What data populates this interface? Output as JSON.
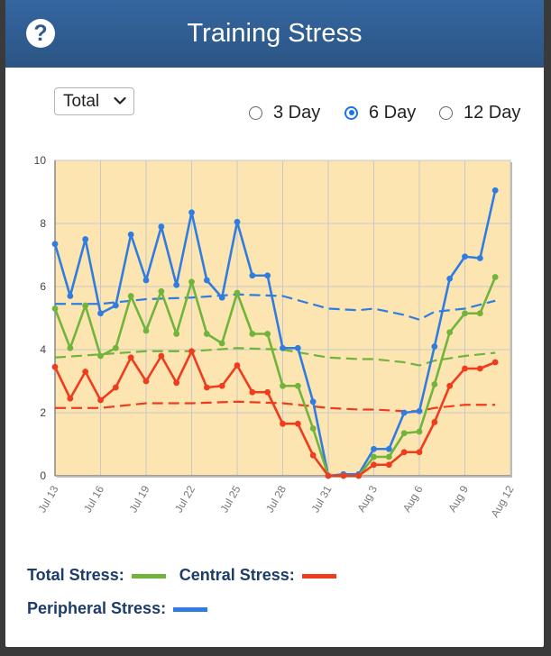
{
  "header": {
    "title": "Training Stress",
    "help_icon": "question-circle-icon"
  },
  "controls": {
    "select_value": "Total",
    "radios": [
      {
        "label": "3 Day",
        "checked": false
      },
      {
        "label": "6 Day",
        "checked": true
      },
      {
        "label": "12 Day",
        "checked": false
      }
    ]
  },
  "legend": {
    "total_label": "Total Stress:",
    "central_label": "Central Stress:",
    "peripheral_label": "Peripheral Stress:"
  },
  "chart_data": {
    "type": "line",
    "ylim": [
      0,
      10
    ],
    "yticks": [
      "0",
      "2",
      "4",
      "6",
      "8",
      "10"
    ],
    "xticks": [
      "Jul 13",
      "Jul 16",
      "Jul 19",
      "Jul 22",
      "Jul 25",
      "Jul 28",
      "Jul 31",
      "Aug 3",
      "Aug 6",
      "Aug 9",
      "Aug 12"
    ],
    "grid": true,
    "plot_background": "#fce5b0",
    "series": [
      {
        "key": "peripheral",
        "color": "#2f7de1",
        "style": "solid-markers",
        "x": [
          0,
          1,
          2,
          3,
          4,
          5,
          6,
          7,
          8,
          9,
          10,
          11,
          12,
          13,
          14,
          15,
          16,
          17,
          18,
          19,
          20,
          21,
          22,
          23,
          24,
          25,
          26,
          27,
          28,
          29
        ],
        "values": [
          7.35,
          5.7,
          7.5,
          5.15,
          5.4,
          7.65,
          6.2,
          7.9,
          6.05,
          8.35,
          6.2,
          5.65,
          8.05,
          6.35,
          6.35,
          4.05,
          4.05,
          2.35,
          0.0,
          0.05,
          0.05,
          0.85,
          0.85,
          2.0,
          2.05,
          4.1,
          6.25,
          6.95,
          6.9,
          9.05
        ]
      },
      {
        "key": "total",
        "color": "#70b43c",
        "style": "solid-markers",
        "x": [
          0,
          1,
          2,
          3,
          4,
          5,
          6,
          7,
          8,
          9,
          10,
          11,
          12,
          13,
          14,
          15,
          16,
          17,
          18,
          19,
          20,
          21,
          22,
          23,
          24,
          25,
          26,
          27,
          28,
          29
        ],
        "values": [
          5.3,
          4.05,
          5.4,
          3.8,
          4.05,
          5.7,
          4.6,
          5.85,
          4.5,
          6.15,
          4.5,
          4.2,
          5.8,
          4.5,
          4.5,
          2.85,
          2.85,
          1.5,
          0.0,
          0.0,
          0.0,
          0.6,
          0.6,
          1.35,
          1.4,
          2.9,
          4.55,
          5.15,
          5.15,
          6.3
        ]
      },
      {
        "key": "central",
        "color": "#f03c1e",
        "style": "solid-markers",
        "x": [
          0,
          1,
          2,
          3,
          4,
          5,
          6,
          7,
          8,
          9,
          10,
          11,
          12,
          13,
          14,
          15,
          16,
          17,
          18,
          19,
          20,
          21,
          22,
          23,
          24,
          25,
          26,
          27,
          28,
          29
        ],
        "values": [
          3.45,
          2.45,
          3.3,
          2.4,
          2.8,
          3.75,
          3.0,
          3.8,
          2.95,
          3.95,
          2.8,
          2.85,
          3.5,
          2.65,
          2.65,
          1.65,
          1.65,
          0.65,
          0.0,
          0.0,
          0.0,
          0.35,
          0.35,
          0.75,
          0.75,
          1.7,
          2.85,
          3.4,
          3.4,
          3.6
        ]
      },
      {
        "key": "peripheral_avg",
        "color": "#2f7de1",
        "style": "dashed",
        "x": [
          0,
          3,
          6,
          9,
          12,
          15,
          18,
          20,
          21,
          23,
          24,
          25,
          27,
          29
        ],
        "values": [
          5.45,
          5.45,
          5.6,
          5.65,
          5.75,
          5.7,
          5.3,
          5.25,
          5.3,
          5.1,
          4.95,
          5.2,
          5.3,
          5.55
        ]
      },
      {
        "key": "total_avg",
        "color": "#70b43c",
        "style": "dashed",
        "x": [
          0,
          3,
          6,
          9,
          12,
          15,
          18,
          20,
          21,
          23,
          24,
          25,
          27,
          29
        ],
        "values": [
          3.75,
          3.85,
          3.95,
          3.95,
          4.05,
          4.0,
          3.75,
          3.7,
          3.7,
          3.6,
          3.5,
          3.65,
          3.8,
          3.9
        ]
      },
      {
        "key": "central_avg",
        "color": "#f03c1e",
        "style": "dashed",
        "x": [
          0,
          3,
          6,
          9,
          12,
          15,
          18,
          20,
          21,
          23,
          24,
          25,
          27,
          29
        ],
        "values": [
          2.15,
          2.15,
          2.3,
          2.3,
          2.35,
          2.3,
          2.15,
          2.1,
          2.1,
          2.05,
          2.05,
          2.15,
          2.25,
          2.25
        ]
      }
    ]
  }
}
